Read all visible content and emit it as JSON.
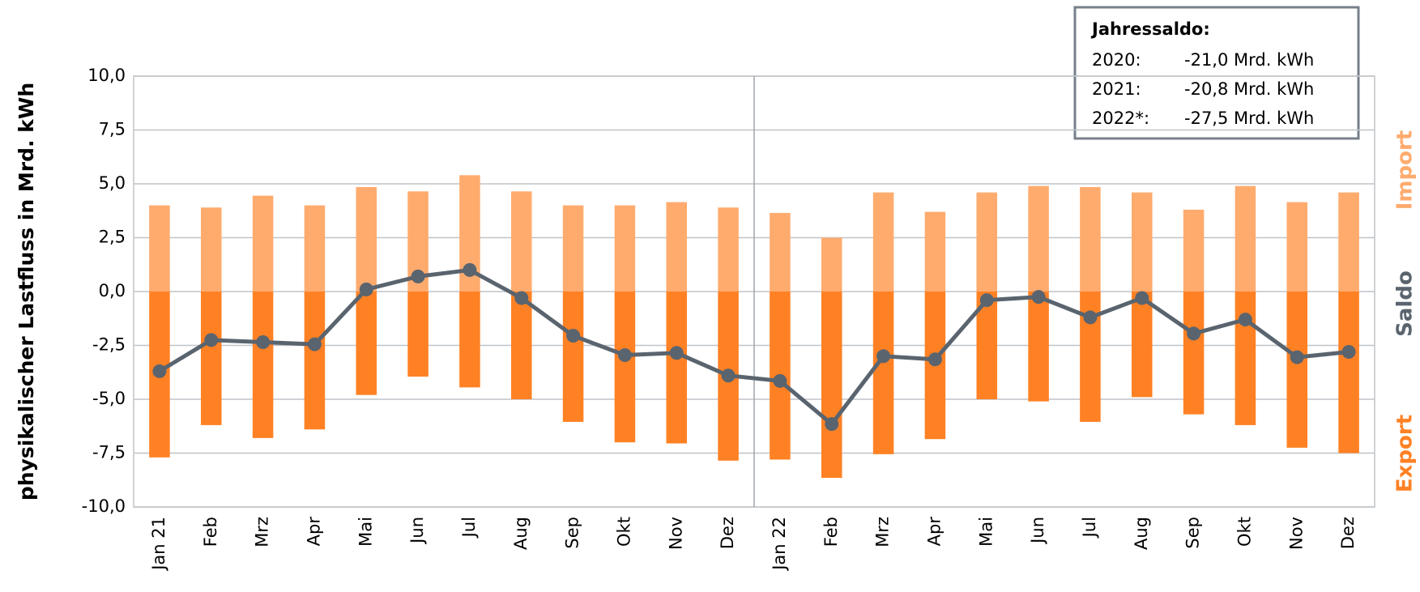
{
  "chart_data": {
    "type": "bar",
    "y_axis_label": "physikalischer Lastfluss in Mrd. kWh",
    "categories": [
      "Jan 21",
      "Feb",
      "Mrz",
      "Apr",
      "Mai",
      "Jun",
      "Jul",
      "Aug",
      "Sep",
      "Okt",
      "Nov",
      "Dez",
      "Jan 22",
      "Feb",
      "Mrz",
      "Apr",
      "Mai",
      "Jun",
      "Jul",
      "Aug",
      "Sep",
      "Okt",
      "Nov",
      "Dez"
    ],
    "series": [
      {
        "name": "Import",
        "color": "#ffab6e",
        "values": [
          4.0,
          3.9,
          4.45,
          4.0,
          4.85,
          4.65,
          5.4,
          4.65,
          4.0,
          4.0,
          4.15,
          3.9,
          3.65,
          2.5,
          4.6,
          3.7,
          4.6,
          4.9,
          4.85,
          4.6,
          3.8,
          4.9,
          4.15,
          4.6
        ]
      },
      {
        "name": "Export",
        "color": "#ff8124",
        "values": [
          -7.7,
          -6.2,
          -6.8,
          -6.4,
          -4.8,
          -3.95,
          -4.45,
          -5.0,
          -6.05,
          -7.0,
          -7.05,
          -7.85,
          -7.8,
          -8.65,
          -7.55,
          -6.85,
          -5.0,
          -5.1,
          -6.05,
          -4.9,
          -5.7,
          -6.2,
          -7.25,
          -7.5
        ]
      },
      {
        "name": "Saldo",
        "type": "line",
        "color": "#5a646e",
        "values": [
          -3.7,
          -2.25,
          -2.35,
          -2.45,
          0.1,
          0.7,
          1.0,
          -0.3,
          -2.05,
          -2.95,
          -2.85,
          -3.9,
          -4.15,
          -6.15,
          -3.0,
          -3.15,
          -0.4,
          -0.25,
          -1.2,
          -0.3,
          -1.95,
          -1.3,
          -3.05,
          -2.8
        ]
      }
    ],
    "ylim": [
      -10,
      10
    ],
    "yticks": [
      {
        "value": -10,
        "label": "-10,0"
      },
      {
        "value": -7.5,
        "label": "-7,5"
      },
      {
        "value": -5,
        "label": "-5,0"
      },
      {
        "value": -2.5,
        "label": "-2,5"
      },
      {
        "value": 0,
        "label": "0,0"
      },
      {
        "value": 2.5,
        "label": "2,5"
      },
      {
        "value": 5,
        "label": "5,0"
      },
      {
        "value": 7.5,
        "label": "7,5"
      },
      {
        "value": 10,
        "label": "10,0"
      }
    ],
    "grid": true,
    "annotation": {
      "title": "Jahressaldo:",
      "rows": [
        [
          "2020:",
          "-21,0 Mrd. kWh"
        ],
        [
          "2021:",
          "-20,8 Mrd. kWh"
        ],
        [
          "2022*:",
          "-27,5 Mrd. kWh"
        ]
      ]
    }
  }
}
